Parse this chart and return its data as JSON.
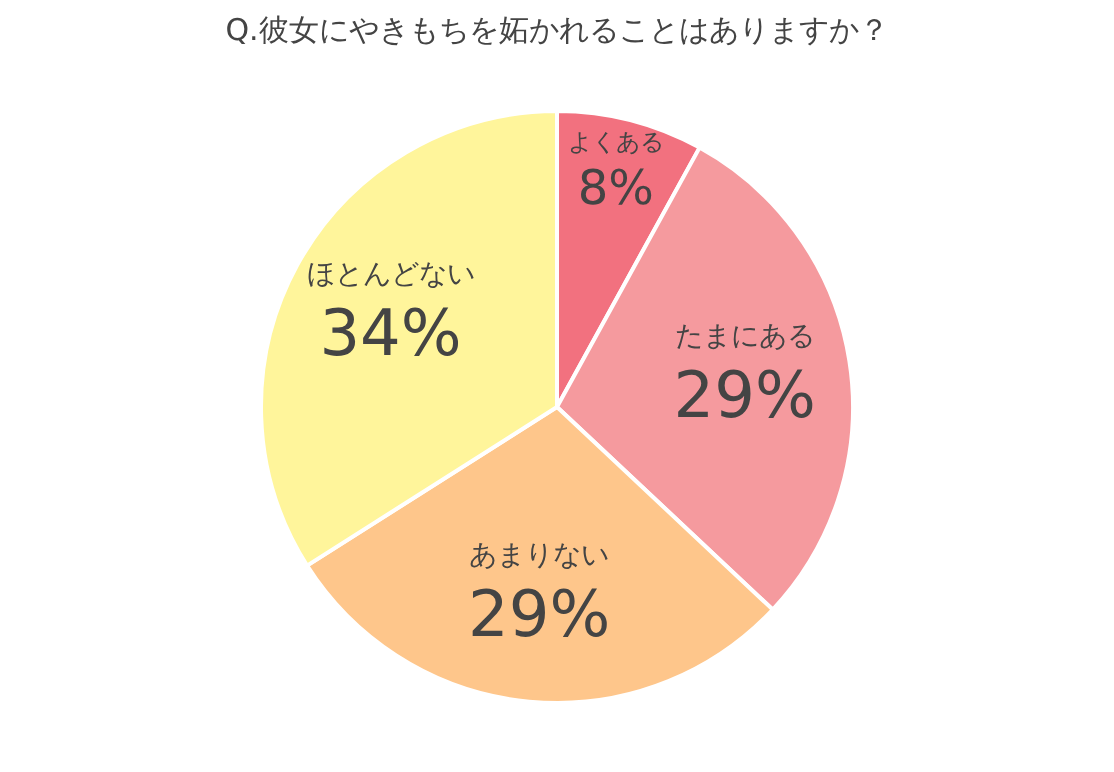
{
  "chart_data": {
    "type": "pie",
    "title": "Q.彼女にやきもちを妬かれることはありますか？",
    "categories": [
      "よくある",
      "たまにある",
      "あまりない",
      "ほとんどない"
    ],
    "values": [
      8,
      29,
      29,
      34
    ],
    "value_labels": [
      "8%",
      "29%",
      "29%",
      "34%"
    ],
    "colors": [
      "#f2717f",
      "#f59a9e",
      "#fec68b",
      "#fff59b"
    ],
    "legend": false
  }
}
